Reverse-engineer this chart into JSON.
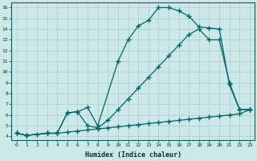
{
  "xlabel": "Humidex (Indice chaleur)",
  "xlim": [
    -0.5,
    23.5
  ],
  "ylim": [
    3.7,
    16.5
  ],
  "xticks": [
    0,
    1,
    2,
    3,
    4,
    5,
    6,
    7,
    8,
    9,
    10,
    11,
    12,
    13,
    14,
    15,
    16,
    17,
    18,
    19,
    20,
    21,
    22,
    23
  ],
  "yticks": [
    4,
    5,
    6,
    7,
    8,
    9,
    10,
    11,
    12,
    13,
    14,
    15,
    16
  ],
  "bg_color": "#cce8e8",
  "grid_color": "#aacccc",
  "line_color": "#006666",
  "line1_x": [
    0,
    1,
    2,
    3,
    4,
    5,
    6,
    7,
    8,
    9,
    10,
    11,
    12,
    13,
    14,
    15,
    16,
    17,
    18,
    19,
    20,
    21,
    22,
    23
  ],
  "line1_y": [
    4.3,
    4.1,
    4.2,
    4.3,
    4.3,
    4.4,
    4.5,
    4.6,
    4.7,
    4.8,
    4.9,
    5.0,
    5.1,
    5.2,
    5.3,
    5.4,
    5.5,
    5.6,
    5.7,
    5.8,
    5.9,
    6.0,
    6.1,
    6.5
  ],
  "line2_x": [
    0,
    1,
    3,
    4,
    5,
    6,
    7,
    8,
    9,
    10,
    11,
    12,
    13,
    14,
    15,
    16,
    17,
    18,
    19,
    20,
    21,
    22,
    23
  ],
  "line2_y": [
    4.3,
    4.1,
    4.3,
    4.3,
    6.2,
    6.3,
    5.0,
    4.8,
    5.5,
    6.5,
    7.5,
    8.5,
    9.5,
    10.5,
    11.5,
    12.5,
    13.5,
    14.0,
    13.0,
    13.0,
    9.0,
    6.5,
    6.5
  ],
  "line3_x": [
    0,
    1,
    3,
    4,
    5,
    6,
    7,
    8,
    10,
    11,
    12,
    13,
    14,
    15,
    16,
    17,
    18,
    19,
    20,
    21,
    22,
    23
  ],
  "line3_y": [
    4.3,
    4.1,
    4.3,
    4.3,
    6.2,
    6.3,
    6.7,
    5.0,
    11.0,
    13.0,
    14.3,
    14.8,
    16.0,
    16.0,
    15.7,
    15.2,
    14.2,
    14.1,
    14.0,
    8.8,
    6.5,
    6.5
  ]
}
